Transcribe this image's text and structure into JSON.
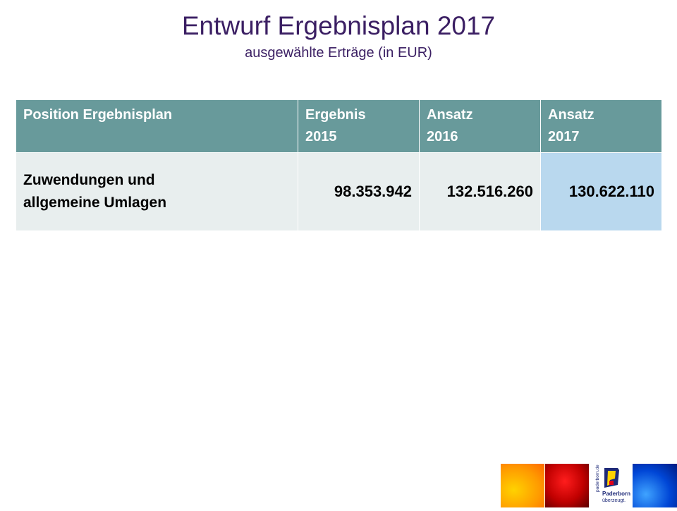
{
  "slide": {
    "title": "Entwurf Ergebnisplan 2017",
    "subtitle": "ausgewählte Erträge (in EUR)"
  },
  "table": {
    "headers": [
      {
        "line1": "Position Ergebnisplan",
        "line2": ""
      },
      {
        "line1": "Ergebnis",
        "line2": "2015"
      },
      {
        "line1": "Ansatz",
        "line2": "2016"
      },
      {
        "line1": "Ansatz",
        "line2": "2017"
      }
    ],
    "rows": [
      {
        "position_line1": "Zuwendungen und",
        "position_line2": "allgemeine Umlagen",
        "ergebnis_2015": "98.353.942",
        "ansatz_2016": "132.516.260",
        "ansatz_2017": "130.622.110"
      }
    ]
  },
  "logo": {
    "vertical_text": "paderborn.de",
    "name": "Paderborn",
    "tagline": "überzeugt.",
    "colors": {
      "blue": "#1e2a78",
      "yellow": "#ffd200",
      "red": "#e2001a"
    }
  },
  "colors": {
    "title": "#3b1f63",
    "header_bg": "#689a9b",
    "row_bg": "#e8eeee",
    "highlight_bg": "#b9d8ee"
  }
}
